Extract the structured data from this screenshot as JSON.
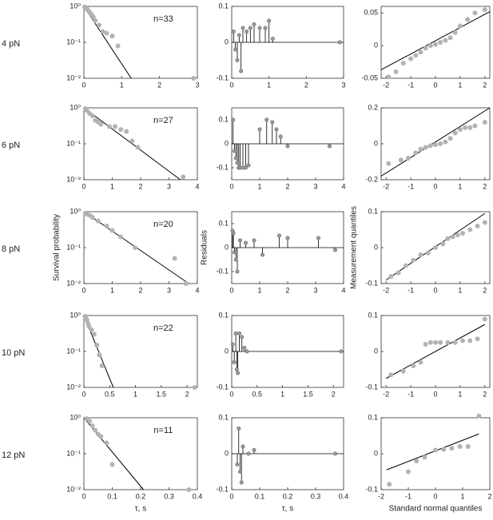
{
  "chart_data": [
    {
      "type": "survival",
      "title": "4 pN",
      "annotation": "n=33",
      "log_y": true,
      "xlim": [
        0,
        3
      ],
      "xticks": [
        0,
        1,
        2,
        3
      ],
      "ylim": [
        0.01,
        1
      ],
      "yticks": [
        {
          "value": 0.01,
          "label": "10⁻²"
        },
        {
          "value": 0.1,
          "label": "10⁻¹"
        },
        {
          "value": 1,
          "label": "10⁰"
        }
      ],
      "marker_color": "#b3b3b3",
      "line_color": "#000000",
      "points": {
        "x": [
          0.02,
          0.05,
          0.08,
          0.1,
          0.12,
          0.15,
          0.2,
          0.25,
          0.3,
          0.4,
          0.5,
          0.6,
          0.75,
          0.9,
          2.9
        ],
        "y": [
          0.97,
          0.9,
          0.85,
          0.8,
          0.75,
          0.7,
          0.6,
          0.5,
          0.4,
          0.3,
          0.2,
          0.18,
          0.15,
          0.08,
          0.01
        ]
      },
      "fit": {
        "x": [
          0,
          1.25
        ],
        "y": [
          1,
          0.01
        ]
      }
    },
    {
      "type": "stem",
      "xlim": [
        0,
        3
      ],
      "xticks": [
        0,
        1,
        2,
        3
      ],
      "ylim": [
        -0.1,
        0.1
      ],
      "yticks": [
        -0.1,
        0,
        0.1
      ],
      "marker_color": "#9a9a9a",
      "line_color": "#000000",
      "points": {
        "x": [
          0.05,
          0.1,
          0.15,
          0.2,
          0.25,
          0.3,
          0.4,
          0.5,
          0.6,
          0.75,
          0.9,
          1.0,
          1.1,
          2.9
        ],
        "y": [
          0.03,
          -0.02,
          -0.05,
          0.02,
          -0.08,
          0.04,
          0.03,
          0.04,
          0.05,
          0.04,
          0.04,
          0.06,
          0.01,
          0
        ]
      }
    },
    {
      "type": "qq",
      "xlim": [
        -2.2,
        2.2
      ],
      "xticks": [
        -2,
        -1,
        0,
        1,
        2
      ],
      "ylim": [
        -0.05,
        0.06
      ],
      "yticks": [
        -0.05,
        0,
        0.05
      ],
      "marker_color": "#b3b3b3",
      "line_color": "#000000",
      "points": {
        "x": [
          -1.9,
          -1.6,
          -1.3,
          -1,
          -0.8,
          -0.6,
          -0.4,
          -0.2,
          0,
          0.2,
          0.4,
          0.6,
          0.8,
          1,
          1.3,
          1.6,
          2
        ],
        "y": [
          -0.048,
          -0.04,
          -0.027,
          -0.02,
          -0.015,
          -0.01,
          -0.004,
          0,
          0.002,
          0.005,
          0.008,
          0.012,
          0.02,
          0.03,
          0.04,
          0.05,
          0.055
        ]
      },
      "fit": {
        "x": [
          -2.2,
          2.2
        ],
        "y": [
          -0.037,
          0.052
        ]
      }
    },
    {
      "type": "survival",
      "title": "6 pN",
      "annotation": "n=27",
      "log_y": true,
      "xlim": [
        0,
        4
      ],
      "xticks": [
        0,
        1,
        2,
        3,
        4
      ],
      "ylim": [
        0.01,
        1
      ],
      "yticks": [
        {
          "value": 0.01,
          "label": "10⁻²"
        },
        {
          "value": 0.1,
          "label": "10⁻¹"
        },
        {
          "value": 1,
          "label": "10⁰"
        }
      ],
      "marker_color": "#b3b3b3",
      "line_color": "#000000",
      "points": {
        "x": [
          0.05,
          0.1,
          0.2,
          0.3,
          0.4,
          0.5,
          0.6,
          0.9,
          1.1,
          1.3,
          1.5,
          1.7,
          1.9,
          3.5
        ],
        "y": [
          0.95,
          0.85,
          0.7,
          0.6,
          0.45,
          0.4,
          0.35,
          0.3,
          0.3,
          0.25,
          0.22,
          0.12,
          0.08,
          0.012
        ]
      },
      "fit": {
        "x": [
          0,
          3.4
        ],
        "y": [
          1,
          0.01
        ]
      }
    },
    {
      "type": "stem",
      "xlim": [
        0,
        4
      ],
      "xticks": [
        0,
        1,
        2,
        3,
        4
      ],
      "ylim": [
        -0.15,
        0.15
      ],
      "yticks": [
        -0.1,
        0,
        0.1
      ],
      "marker_color": "#9a9a9a",
      "line_color": "#000000",
      "points": {
        "x": [
          0.05,
          0.1,
          0.15,
          0.2,
          0.25,
          0.3,
          0.4,
          0.5,
          0.6,
          1.0,
          1.25,
          1.45,
          1.6,
          1.75,
          2.0,
          3.5
        ],
        "y": [
          0.1,
          -0.03,
          -0.06,
          -0.08,
          -0.1,
          -0.1,
          -0.1,
          -0.1,
          -0.09,
          0.06,
          0.1,
          0.09,
          0.06,
          0.03,
          -0.01,
          -0.01
        ]
      }
    },
    {
      "type": "qq",
      "xlim": [
        -2.2,
        2.2
      ],
      "xticks": [
        -2,
        -1,
        0,
        1,
        2
      ],
      "ylim": [
        -0.2,
        0.2
      ],
      "yticks": [
        -0.2,
        0,
        0.2
      ],
      "marker_color": "#b3b3b3",
      "line_color": "#000000",
      "points": {
        "x": [
          -1.9,
          -1.4,
          -1.1,
          -0.8,
          -0.6,
          -0.4,
          -0.2,
          0,
          0.2,
          0.4,
          0.6,
          0.8,
          1,
          1.2,
          1.4,
          1.6,
          2
        ],
        "y": [
          -0.11,
          -0.09,
          -0.08,
          -0.05,
          -0.03,
          -0.02,
          -0.01,
          -0.005,
          0,
          0.01,
          0.03,
          0.06,
          0.08,
          0.09,
          0.09,
          0.1,
          0.12
        ]
      },
      "fit": {
        "x": [
          -2.2,
          2.2
        ],
        "y": [
          -0.18,
          0.2
        ]
      }
    },
    {
      "type": "survival",
      "title": "8 pN",
      "annotation": "n=20",
      "ylabel": "Survival probability",
      "log_y": true,
      "xlim": [
        0,
        4
      ],
      "xticks": [
        0,
        1,
        2,
        3,
        4
      ],
      "ylim": [
        0.01,
        1
      ],
      "yticks": [
        {
          "value": 0.01,
          "label": "10⁻²"
        },
        {
          "value": 0.1,
          "label": "10⁻¹"
        },
        {
          "value": 1,
          "label": "10⁰"
        }
      ],
      "marker_color": "#b3b3b3",
      "line_color": "#000000",
      "points": {
        "x": [
          0.05,
          0.1,
          0.2,
          0.3,
          0.5,
          0.8,
          1,
          1.3,
          1.8,
          3.2,
          3.6
        ],
        "y": [
          0.9,
          0.85,
          0.8,
          0.7,
          0.55,
          0.4,
          0.3,
          0.2,
          0.1,
          0.05,
          0.01
        ]
      },
      "fit": {
        "x": [
          0,
          3.7
        ],
        "y": [
          1,
          0.01
        ]
      }
    },
    {
      "type": "stem",
      "ylabel": "Residuals",
      "xlim": [
        0,
        4
      ],
      "xticks": [
        0,
        1,
        2,
        3,
        4
      ],
      "ylim": [
        -0.15,
        0.15
      ],
      "yticks": [
        -0.1,
        0,
        0.1
      ],
      "marker_color": "#9a9a9a",
      "line_color": "#000000",
      "points": {
        "x": [
          0.03,
          0.06,
          0.1,
          0.15,
          0.2,
          0.3,
          0.5,
          0.8,
          1.1,
          1.7,
          2.0,
          3.1,
          3.7
        ],
        "y": [
          0.07,
          0.06,
          -0.02,
          -0.05,
          -0.1,
          0.03,
          0.02,
          0.03,
          -0.03,
          0.05,
          0.04,
          0.04,
          -0.01
        ]
      }
    },
    {
      "type": "qq",
      "ylabel": "Measurement quantiles",
      "xlim": [
        -2.2,
        2.2
      ],
      "xticks": [
        -2,
        -1,
        0,
        1,
        2
      ],
      "ylim": [
        -0.1,
        0.1
      ],
      "yticks": [
        -0.1,
        0,
        0.1
      ],
      "marker_color": "#b3b3b3",
      "line_color": "#000000",
      "points": {
        "x": [
          -1.8,
          -1.5,
          -1.2,
          -0.9,
          -0.6,
          -0.3,
          0,
          0.3,
          0.5,
          0.7,
          0.9,
          1.1,
          1.4,
          1.7,
          2
        ],
        "y": [
          -0.08,
          -0.07,
          -0.05,
          -0.035,
          -0.02,
          -0.015,
          0,
          0.01,
          0.025,
          0.03,
          0.035,
          0.04,
          0.05,
          0.06,
          0.07
        ]
      },
      "fit": {
        "x": [
          -2,
          2
        ],
        "y": [
          -0.09,
          0.095
        ]
      }
    },
    {
      "type": "survival",
      "title": "10 pN",
      "annotation": "n=22",
      "log_y": true,
      "xlim": [
        0,
        2.2
      ],
      "xticks": [
        0,
        0.5,
        1,
        1.5,
        2
      ],
      "ylim": [
        0.01,
        1
      ],
      "yticks": [
        {
          "value": 0.01,
          "label": "10⁻²"
        },
        {
          "value": 0.1,
          "label": "10⁻¹"
        },
        {
          "value": 1,
          "label": "10⁰"
        }
      ],
      "marker_color": "#b3b3b3",
      "line_color": "#000000",
      "points": {
        "x": [
          0.02,
          0.04,
          0.06,
          0.08,
          0.1,
          0.15,
          0.2,
          0.25,
          0.3,
          0.35,
          2.15
        ],
        "y": [
          0.95,
          0.85,
          0.75,
          0.6,
          0.5,
          0.4,
          0.3,
          0.15,
          0.08,
          0.04,
          0.01
        ]
      },
      "fit": {
        "x": [
          0,
          0.57
        ],
        "y": [
          1,
          0.01
        ]
      }
    },
    {
      "type": "stem",
      "xlim": [
        0,
        2.2
      ],
      "xticks": [
        0,
        0.5,
        1,
        1.5,
        2
      ],
      "ylim": [
        -0.1,
        0.1
      ],
      "yticks": [
        -0.1,
        0,
        0.1
      ],
      "marker_color": "#9a9a9a",
      "line_color": "#000000",
      "points": {
        "x": [
          0.02,
          0.05,
          0.08,
          0.1,
          0.12,
          0.15,
          0.2,
          0.25,
          0.3,
          2.15
        ],
        "y": [
          0.02,
          -0.03,
          0.05,
          -0.05,
          -0.06,
          0.05,
          0.04,
          0.01,
          0,
          0
        ]
      }
    },
    {
      "type": "qq",
      "xlim": [
        -2.2,
        2.2
      ],
      "xticks": [
        -2,
        -1,
        0,
        1,
        2
      ],
      "ylim": [
        -0.1,
        0.1
      ],
      "yticks": [
        -0.1,
        0,
        0.1
      ],
      "marker_color": "#b3b3b3",
      "line_color": "#000000",
      "points": {
        "x": [
          -1.8,
          -1.3,
          -0.9,
          -0.6,
          -0.4,
          -0.2,
          0,
          0.2,
          0.5,
          0.8,
          1.1,
          1.4,
          1.7,
          2
        ],
        "y": [
          -0.065,
          -0.055,
          -0.04,
          -0.03,
          0.02,
          0.025,
          0.025,
          0.025,
          0.025,
          0.025,
          0.03,
          0.03,
          0.035,
          0.09
        ]
      },
      "fit": {
        "x": [
          -2,
          2
        ],
        "y": [
          -0.075,
          0.075
        ]
      }
    },
    {
      "type": "survival",
      "title": "12 pN",
      "annotation": "n=11",
      "xlabel": "τ, s",
      "log_y": true,
      "xlim": [
        0,
        0.4
      ],
      "xticks": [
        0,
        0.1,
        0.2,
        0.3,
        0.4
      ],
      "ylim": [
        0.01,
        1
      ],
      "yticks": [
        {
          "value": 0.01,
          "label": "10⁻²"
        },
        {
          "value": 0.1,
          "label": "10⁻¹"
        },
        {
          "value": 1,
          "label": "10⁰"
        }
      ],
      "marker_color": "#b3b3b3",
      "line_color": "#000000",
      "points": {
        "x": [
          0.01,
          0.02,
          0.03,
          0.04,
          0.05,
          0.06,
          0.08,
          0.1,
          0.37
        ],
        "y": [
          0.95,
          0.8,
          0.6,
          0.45,
          0.35,
          0.3,
          0.2,
          0.05,
          0.01
        ]
      },
      "fit": {
        "x": [
          0,
          0.21
        ],
        "y": [
          1,
          0.01
        ]
      }
    },
    {
      "type": "stem",
      "xlabel": "τ, s",
      "xlim": [
        0,
        0.4
      ],
      "xticks": [
        0,
        0.1,
        0.2,
        0.3,
        0.4
      ],
      "ylim": [
        -0.1,
        0.1
      ],
      "yticks": [
        -0.1,
        0,
        0.1
      ],
      "marker_color": "#9a9a9a",
      "line_color": "#000000",
      "points": {
        "x": [
          0.02,
          0.025,
          0.03,
          0.035,
          0.04,
          0.06,
          0.08,
          0.37
        ],
        "y": [
          -0.03,
          0.07,
          -0.05,
          -0.08,
          0.02,
          0,
          0.01,
          0
        ]
      }
    },
    {
      "type": "qq",
      "xlabel": "Standard normal quantiles",
      "xlim": [
        -2,
        2
      ],
      "xticks": [
        -2,
        -1,
        0,
        1,
        2
      ],
      "ylim": [
        -0.1,
        0.1
      ],
      "yticks": [
        -0.1,
        0,
        0.1
      ],
      "marker_color": "#b3b3b3",
      "line_color": "#000000",
      "points": {
        "x": [
          -1.7,
          -1,
          -0.7,
          -0.4,
          0,
          0.3,
          0.6,
          0.9,
          1.2,
          1.6
        ],
        "y": [
          -0.085,
          -0.05,
          -0.02,
          -0.01,
          0.01,
          0.012,
          0.015,
          0.02,
          0.02,
          0.105
        ]
      },
      "fit": {
        "x": [
          -1.8,
          1.6
        ],
        "y": [
          -0.045,
          0.055
        ]
      }
    }
  ]
}
